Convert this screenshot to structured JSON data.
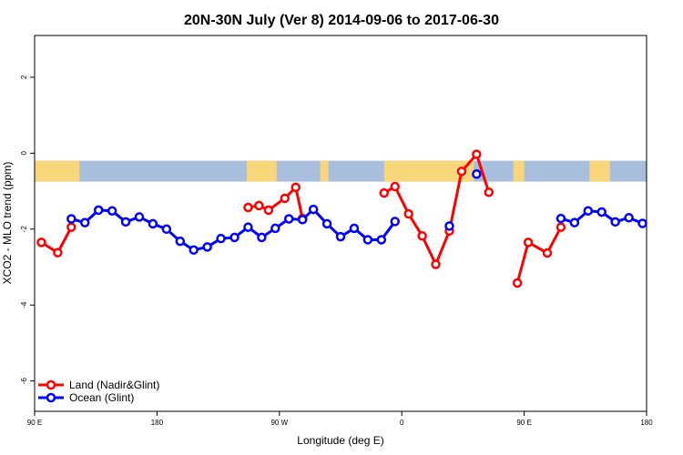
{
  "chart_data": {
    "type": "line",
    "title": "20N-30N July (Ver 8)   2014-09-06 to 2017-06-30",
    "xlabel": "Longitude (deg E)",
    "ylabel": "XCO2 - MLO trend (ppm)",
    "xlim": [
      90,
      540
    ],
    "ylim": [
      -6.8,
      3.1
    ],
    "x_ticks": [
      {
        "value": 90,
        "label": "90 E"
      },
      {
        "value": 180,
        "label": "180"
      },
      {
        "value": 270,
        "label": "90 W"
      },
      {
        "value": 360,
        "label": "0"
      },
      {
        "value": 450,
        "label": "90 E"
      },
      {
        "value": 540,
        "label": "180"
      }
    ],
    "y_ticks": [
      {
        "value": 2,
        "label": "2"
      },
      {
        "value": 0,
        "label": "0"
      },
      {
        "value": -2,
        "label": "-2"
      },
      {
        "value": -4,
        "label": "-4"
      },
      {
        "value": -6,
        "label": "-6"
      }
    ],
    "map_band": {
      "ymin": -0.75,
      "ymax": -0.2,
      "ocean_color": "#a8bedc",
      "land_color": "#f7d77a",
      "land_spans": [
        [
          90,
          123
        ],
        [
          246,
          268
        ],
        [
          300,
          306
        ],
        [
          347,
          413
        ],
        [
          442,
          450
        ],
        [
          498,
          513
        ]
      ]
    },
    "legend": {
      "position": "bottom-left"
    },
    "series": [
      {
        "name": "Land (Nadir&Glint)",
        "color": "#ff0000",
        "segments": [
          [
            [
              95,
              -2.35
            ],
            [
              107,
              -2.62
            ],
            [
              117,
              -1.95
            ]
          ],
          [
            [
              247,
              -1.43
            ],
            [
              255,
              -1.38
            ],
            [
              262,
              -1.5
            ],
            [
              274,
              -1.19
            ],
            [
              282,
              -0.9
            ],
            [
              287,
              -1.72
            ]
          ],
          [
            [
              347,
              -1.05
            ],
            [
              355,
              -0.88
            ],
            [
              365,
              -1.6
            ],
            [
              375,
              -2.18
            ],
            [
              385,
              -2.93
            ],
            [
              395,
              -2.05
            ],
            [
              404,
              -0.48
            ],
            [
              415,
              -0.03
            ],
            [
              424,
              -1.03
            ]
          ],
          [
            [
              445,
              -3.42
            ],
            [
              453,
              -2.35
            ],
            [
              467,
              -2.63
            ],
            [
              477,
              -1.95
            ]
          ]
        ]
      },
      {
        "name": "Ocean (Glint)",
        "color": "#0000ff",
        "segments": [
          [
            [
              117,
              -1.73
            ],
            [
              127,
              -1.83
            ],
            [
              137,
              -1.5
            ],
            [
              147,
              -1.52
            ],
            [
              157,
              -1.81
            ],
            [
              167,
              -1.68
            ],
            [
              177,
              -1.86
            ],
            [
              187,
              -2.0
            ],
            [
              197,
              -2.32
            ],
            [
              207,
              -2.55
            ],
            [
              217,
              -2.47
            ],
            [
              227,
              -2.25
            ],
            [
              237,
              -2.22
            ],
            [
              247,
              -1.95
            ],
            [
              257,
              -2.22
            ],
            [
              267,
              -1.98
            ],
            [
              277,
              -1.73
            ],
            [
              287,
              -1.75
            ],
            [
              295,
              -1.48
            ],
            [
              305,
              -1.86
            ],
            [
              315,
              -2.2
            ],
            [
              325,
              -1.98
            ],
            [
              335,
              -2.28
            ],
            [
              345,
              -2.28
            ],
            [
              355,
              -1.8
            ]
          ],
          [
            [
              395,
              -1.92
            ]
          ],
          [
            [
              415,
              -0.55
            ]
          ],
          [
            [
              477,
              -1.72
            ],
            [
              487,
              -1.83
            ],
            [
              497,
              -1.52
            ],
            [
              507,
              -1.55
            ],
            [
              517,
              -1.81
            ],
            [
              527,
              -1.7
            ],
            [
              537,
              -1.85
            ]
          ]
        ]
      }
    ]
  }
}
